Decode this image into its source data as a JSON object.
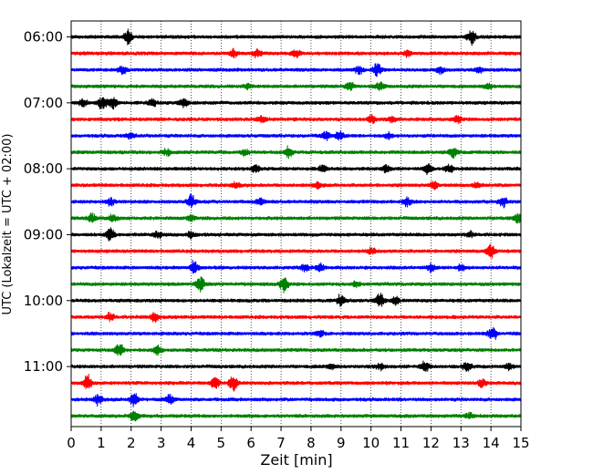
{
  "chart_data": {
    "type": "line",
    "subtype": "helicorder / seismogram",
    "xlabel": "Zeit  [min]",
    "ylabel": "UTC (Lokalzeit = UTC + 02:00)",
    "xlim": [
      0,
      15
    ],
    "xticks": [
      "0",
      "1",
      "2",
      "3",
      "4",
      "5",
      "6",
      "7",
      "8",
      "9",
      "10",
      "11",
      "12",
      "13",
      "14",
      "15"
    ],
    "grid": "vertical dotted lines at every minute",
    "row_interval_minutes": 15,
    "start_time": "06:00",
    "ytick_labels": [
      "06:00",
      "07:00",
      "08:00",
      "09:00",
      "10:00",
      "11:00"
    ],
    "colors_cycle": [
      "#000000",
      "#ff0000",
      "#0000ff",
      "#008000"
    ],
    "rows": [
      {
        "color": "#000000",
        "bursts": [
          [
            1.9,
            0.9
          ],
          [
            13.35,
            0.9
          ]
        ]
      },
      {
        "color": "#ff0000",
        "bursts": [
          [
            5.4,
            0.5
          ],
          [
            6.2,
            0.45
          ],
          [
            7.5,
            0.5
          ],
          [
            11.2,
            0.4
          ]
        ]
      },
      {
        "color": "#0000ff",
        "bursts": [
          [
            1.7,
            0.5
          ],
          [
            9.6,
            0.5
          ],
          [
            10.2,
            0.9
          ],
          [
            12.3,
            0.4
          ],
          [
            13.6,
            0.35
          ]
        ]
      },
      {
        "color": "#008000",
        "bursts": [
          [
            5.9,
            0.35
          ],
          [
            9.3,
            0.5
          ],
          [
            10.3,
            0.5
          ],
          [
            13.9,
            0.35
          ]
        ]
      },
      {
        "color": "#000000",
        "bursts": [
          [
            0.4,
            0.5
          ],
          [
            1.05,
            1.0
          ],
          [
            1.4,
            0.7
          ],
          [
            2.7,
            0.45
          ],
          [
            3.75,
            0.6
          ]
        ]
      },
      {
        "color": "#ff0000",
        "bursts": [
          [
            6.35,
            0.45
          ],
          [
            10.0,
            0.5
          ],
          [
            10.7,
            0.4
          ],
          [
            12.9,
            0.45
          ]
        ]
      },
      {
        "color": "#0000ff",
        "bursts": [
          [
            2.0,
            0.4
          ],
          [
            8.5,
            0.6
          ],
          [
            8.95,
            0.55
          ],
          [
            10.6,
            0.35
          ]
        ]
      },
      {
        "color": "#008000",
        "bursts": [
          [
            3.2,
            0.4
          ],
          [
            5.8,
            0.35
          ],
          [
            7.25,
            0.7
          ],
          [
            12.75,
            0.8
          ]
        ]
      },
      {
        "color": "#000000",
        "bursts": [
          [
            6.15,
            0.45
          ],
          [
            8.4,
            0.45
          ],
          [
            10.5,
            0.45
          ],
          [
            11.9,
            0.6
          ],
          [
            12.6,
            0.5
          ]
        ]
      },
      {
        "color": "#ff0000",
        "bursts": [
          [
            5.5,
            0.35
          ],
          [
            8.2,
            0.3
          ],
          [
            12.1,
            0.5
          ],
          [
            13.5,
            0.35
          ]
        ]
      },
      {
        "color": "#0000ff",
        "bursts": [
          [
            1.3,
            0.5
          ],
          [
            4.0,
            0.9
          ],
          [
            6.3,
            0.55
          ],
          [
            11.2,
            0.6
          ],
          [
            14.4,
            0.65
          ]
        ]
      },
      {
        "color": "#008000",
        "bursts": [
          [
            0.7,
            0.5
          ],
          [
            1.4,
            0.4
          ],
          [
            4.0,
            0.35
          ],
          [
            14.9,
            0.6
          ]
        ]
      },
      {
        "color": "#000000",
        "bursts": [
          [
            1.3,
            1.0
          ],
          [
            2.9,
            0.45
          ],
          [
            4.0,
            0.45
          ],
          [
            13.3,
            0.35
          ]
        ]
      },
      {
        "color": "#ff0000",
        "bursts": [
          [
            10.0,
            0.35
          ],
          [
            13.98,
            1.0
          ]
        ]
      },
      {
        "color": "#0000ff",
        "bursts": [
          [
            4.1,
            0.75
          ],
          [
            7.8,
            0.55
          ],
          [
            8.3,
            0.5
          ],
          [
            12.0,
            0.45
          ],
          [
            13.0,
            0.4
          ]
        ]
      },
      {
        "color": "#008000",
        "bursts": [
          [
            4.3,
            1.0
          ],
          [
            7.1,
            1.0
          ],
          [
            9.5,
            0.3
          ]
        ]
      },
      {
        "color": "#000000",
        "bursts": [
          [
            9.0,
            0.7
          ],
          [
            10.3,
            1.0
          ],
          [
            10.8,
            0.5
          ]
        ]
      },
      {
        "color": "#ff0000",
        "bursts": [
          [
            1.3,
            0.5
          ],
          [
            2.8,
            0.6
          ]
        ]
      },
      {
        "color": "#0000ff",
        "bursts": [
          [
            8.3,
            0.4
          ],
          [
            14.05,
            1.0
          ]
        ]
      },
      {
        "color": "#008000",
        "bursts": [
          [
            1.6,
            0.9
          ],
          [
            2.9,
            0.55
          ]
        ]
      },
      {
        "color": "#000000",
        "bursts": [
          [
            8.7,
            0.3
          ],
          [
            10.3,
            0.45
          ],
          [
            11.8,
            0.6
          ],
          [
            13.2,
            0.6
          ],
          [
            14.6,
            0.4
          ]
        ]
      },
      {
        "color": "#ff0000",
        "bursts": [
          [
            0.55,
            1.0
          ],
          [
            4.8,
            0.8
          ],
          [
            5.4,
            1.0
          ],
          [
            13.7,
            0.5
          ]
        ]
      },
      {
        "color": "#0000ff",
        "bursts": [
          [
            0.9,
            0.6
          ],
          [
            2.1,
            0.9
          ],
          [
            3.3,
            0.6
          ]
        ]
      },
      {
        "color": "#008000",
        "bursts": [
          [
            2.1,
            0.8
          ],
          [
            13.3,
            0.4
          ]
        ]
      }
    ]
  }
}
